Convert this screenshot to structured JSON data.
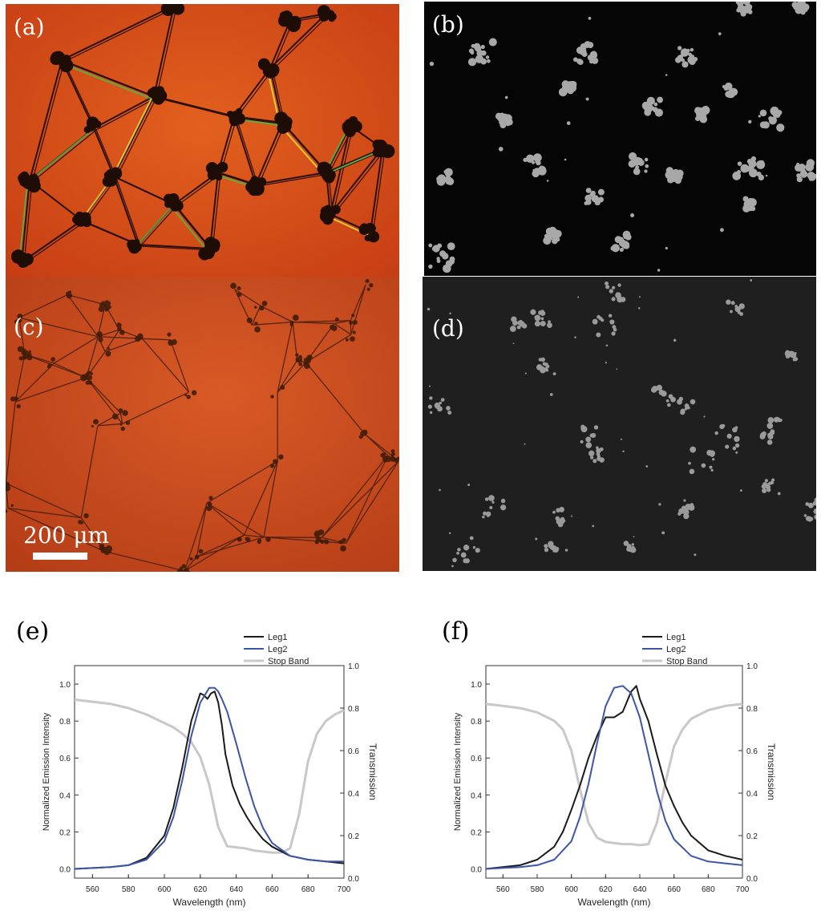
{
  "panels": {
    "a": {
      "label": "(a)"
    },
    "b": {
      "label": "(b)"
    },
    "c": {
      "label": "(c)",
      "scale_bar": "200 μm"
    },
    "d": {
      "label": "(d)"
    },
    "e": {
      "label": "(e)"
    },
    "f": {
      "label": "(f)"
    }
  },
  "colors": {
    "leg1": "#1a1a1a",
    "leg2": "#3d55a8",
    "stop_band": "#c8c8c8",
    "micrograph_bg": "#d04818"
  },
  "chart_data": [
    {
      "type": "line",
      "panel": "e",
      "xlabel": "Wavelength (nm)",
      "ylabel": "Normalized Emission Intensity",
      "y2label": "Transmission",
      "xlim": [
        550,
        700
      ],
      "ylim": [
        -0.05,
        1.1
      ],
      "y2lim": [
        0.0,
        1.0
      ],
      "xticks": [
        560,
        580,
        600,
        620,
        640,
        660,
        680,
        700
      ],
      "yticks": [
        0.0,
        0.2,
        0.4,
        0.6,
        0.8,
        1.0
      ],
      "y2ticks": [
        0.0,
        0.2,
        0.4,
        0.6,
        0.8,
        1.0
      ],
      "legend": "top-right",
      "series": [
        {
          "name": "Leg1",
          "axis": "left",
          "x": [
            550,
            570,
            580,
            590,
            600,
            605,
            610,
            615,
            620,
            622,
            624,
            626,
            628,
            630,
            632,
            634,
            638,
            642,
            646,
            650,
            655,
            660,
            670,
            680,
            690,
            700
          ],
          "y": [
            0.0,
            0.01,
            0.02,
            0.06,
            0.18,
            0.33,
            0.55,
            0.8,
            0.95,
            0.94,
            0.92,
            0.95,
            0.96,
            0.9,
            0.78,
            0.62,
            0.45,
            0.35,
            0.28,
            0.22,
            0.16,
            0.12,
            0.07,
            0.05,
            0.04,
            0.03
          ]
        },
        {
          "name": "Leg2",
          "axis": "left",
          "x": [
            550,
            570,
            580,
            590,
            600,
            605,
            610,
            615,
            620,
            625,
            628,
            630,
            632,
            635,
            640,
            645,
            650,
            655,
            660,
            670,
            680,
            690,
            700
          ],
          "y": [
            0.0,
            0.01,
            0.02,
            0.05,
            0.15,
            0.28,
            0.48,
            0.72,
            0.9,
            0.98,
            0.98,
            0.96,
            0.92,
            0.85,
            0.68,
            0.5,
            0.34,
            0.22,
            0.14,
            0.07,
            0.05,
            0.04,
            0.04
          ]
        },
        {
          "name": "Stop Band",
          "axis": "right",
          "x": [
            550,
            560,
            570,
            580,
            590,
            600,
            605,
            610,
            615,
            620,
            625,
            630,
            635,
            640,
            645,
            650,
            655,
            660,
            665,
            670,
            675,
            680,
            685,
            690,
            695,
            700
          ],
          "y": [
            0.84,
            0.83,
            0.82,
            0.8,
            0.77,
            0.73,
            0.71,
            0.68,
            0.64,
            0.57,
            0.44,
            0.24,
            0.15,
            0.145,
            0.14,
            0.13,
            0.125,
            0.12,
            0.12,
            0.14,
            0.3,
            0.55,
            0.68,
            0.74,
            0.77,
            0.79
          ]
        }
      ]
    },
    {
      "type": "line",
      "panel": "f",
      "xlabel": "Wavelength (nm)",
      "ylabel": "Normalized Emission Intensity",
      "y2label": "Transmission",
      "xlim": [
        550,
        700
      ],
      "ylim": [
        -0.05,
        1.1
      ],
      "y2lim": [
        0.0,
        1.0
      ],
      "xticks": [
        560,
        580,
        600,
        620,
        640,
        660,
        680,
        700
      ],
      "yticks": [
        0.0,
        0.2,
        0.4,
        0.6,
        0.8,
        1.0
      ],
      "y2ticks": [
        0.0,
        0.2,
        0.4,
        0.6,
        0.8,
        1.0
      ],
      "legend": "top-right",
      "series": [
        {
          "name": "Leg1",
          "axis": "left",
          "x": [
            550,
            570,
            580,
            590,
            595,
            600,
            605,
            610,
            615,
            620,
            625,
            630,
            635,
            638,
            640,
            645,
            650,
            655,
            660,
            665,
            670,
            680,
            690,
            700
          ],
          "y": [
            0.0,
            0.02,
            0.05,
            0.12,
            0.2,
            0.32,
            0.45,
            0.6,
            0.72,
            0.82,
            0.82,
            0.85,
            0.96,
            0.99,
            0.92,
            0.8,
            0.62,
            0.45,
            0.34,
            0.25,
            0.18,
            0.1,
            0.07,
            0.05
          ]
        },
        {
          "name": "Leg2",
          "axis": "left",
          "x": [
            550,
            570,
            580,
            590,
            600,
            605,
            610,
            615,
            620,
            625,
            630,
            635,
            640,
            645,
            650,
            655,
            660,
            670,
            680,
            690,
            700
          ],
          "y": [
            0.0,
            0.01,
            0.02,
            0.05,
            0.15,
            0.28,
            0.46,
            0.68,
            0.88,
            0.98,
            0.99,
            0.95,
            0.82,
            0.62,
            0.42,
            0.26,
            0.16,
            0.07,
            0.04,
            0.03,
            0.02
          ]
        },
        {
          "name": "Stop Band",
          "axis": "right",
          "x": [
            550,
            560,
            570,
            580,
            590,
            595,
            600,
            605,
            610,
            615,
            620,
            625,
            630,
            635,
            640,
            645,
            650,
            655,
            660,
            665,
            670,
            680,
            690,
            700
          ],
          "y": [
            0.82,
            0.81,
            0.8,
            0.78,
            0.74,
            0.7,
            0.6,
            0.42,
            0.26,
            0.19,
            0.17,
            0.165,
            0.16,
            0.16,
            0.155,
            0.16,
            0.26,
            0.45,
            0.62,
            0.7,
            0.75,
            0.79,
            0.81,
            0.82
          ]
        }
      ]
    }
  ]
}
